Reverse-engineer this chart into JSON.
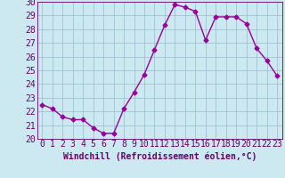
{
  "x": [
    0,
    1,
    2,
    3,
    4,
    5,
    6,
    7,
    8,
    9,
    10,
    11,
    12,
    13,
    14,
    15,
    16,
    17,
    18,
    19,
    20,
    21,
    22,
    23
  ],
  "y": [
    22.5,
    22.2,
    21.6,
    21.4,
    21.4,
    20.8,
    20.4,
    20.4,
    22.2,
    23.4,
    24.7,
    26.5,
    28.3,
    29.8,
    29.6,
    29.3,
    27.2,
    28.9,
    28.9,
    28.9,
    28.4,
    26.6,
    25.7,
    24.6
  ],
  "xlabel": "Windchill (Refroidissement éolien,°C)",
  "ylim": [
    20,
    30
  ],
  "xlim": [
    -0.5,
    23.5
  ],
  "yticks": [
    20,
    21,
    22,
    23,
    24,
    25,
    26,
    27,
    28,
    29,
    30
  ],
  "xticks": [
    0,
    1,
    2,
    3,
    4,
    5,
    6,
    7,
    8,
    9,
    10,
    11,
    12,
    13,
    14,
    15,
    16,
    17,
    18,
    19,
    20,
    21,
    22,
    23
  ],
  "line_color": "#990099",
  "marker": "D",
  "marker_size": 2.5,
  "bg_color": "#cce8f0",
  "grid_color": "#99bbcc",
  "axis_label_color": "#660066",
  "tick_label_color": "#660066",
  "line_width": 1.0,
  "tick_fontsize": 7,
  "xlabel_fontsize": 7
}
